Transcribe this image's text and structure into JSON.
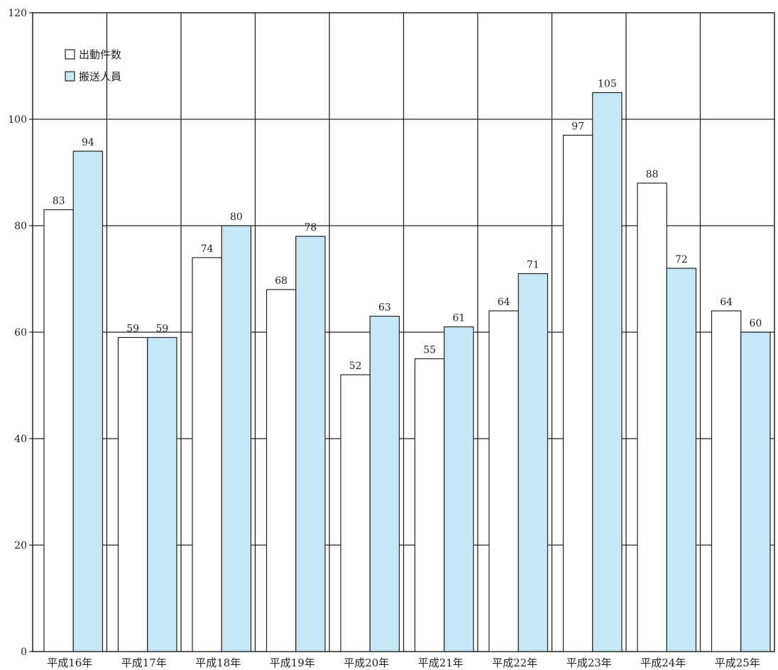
{
  "chart_data": {
    "type": "bar",
    "categories": [
      "平成16年",
      "平成17年",
      "平成18年",
      "平成19年",
      "平成20年",
      "平成21年",
      "平成22年",
      "平成23年",
      "平成24年",
      "平成25年"
    ],
    "series": [
      {
        "name": "出動件数",
        "values": [
          83,
          59,
          74,
          68,
          52,
          55,
          64,
          97,
          88,
          64
        ],
        "color": "#ffffff"
      },
      {
        "name": "搬送人員",
        "values": [
          94,
          59,
          80,
          78,
          63,
          61,
          71,
          105,
          72,
          60
        ],
        "color": "#c5e8f7"
      }
    ],
    "value_labels": [
      [
        "83",
        "59",
        "74",
        "68",
        "52",
        "55",
        "64",
        "97",
        "88",
        "64"
      ],
      [
        "94",
        "59",
        "80",
        "78",
        "63",
        "61",
        "71",
        "105",
        "72",
        "60"
      ]
    ],
    "yticks": [
      "0",
      "20",
      "40",
      "60",
      "80",
      "100",
      "120"
    ],
    "ylim": [
      0,
      120
    ],
    "grid": true,
    "legend_position": "top-left",
    "title": "",
    "xlabel": "",
    "ylabel": ""
  }
}
